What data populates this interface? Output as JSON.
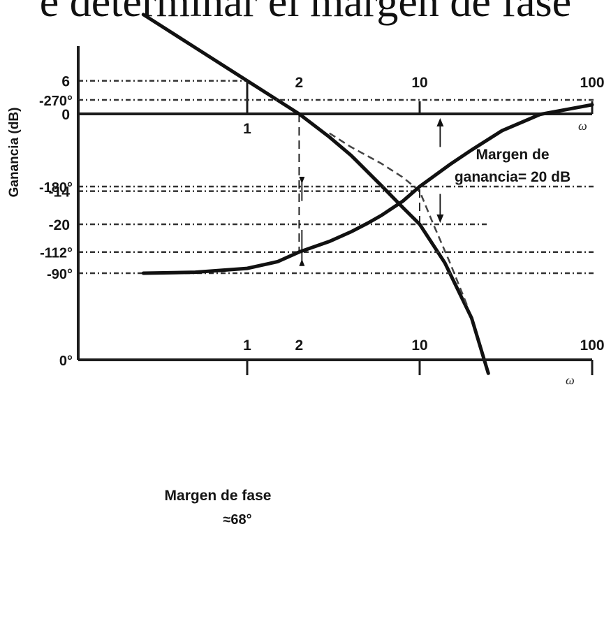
{
  "header": {
    "title_fragment": "e determinar el margen de fase"
  },
  "chart_data": [
    {
      "type": "line",
      "ylabel": "Ganancia (dB)",
      "xlabel": "ω",
      "x_scale": "log",
      "xlim": [
        0.25,
        100
      ],
      "ylim": [
        -60,
        20
      ],
      "x_ticks": [
        1,
        2,
        10,
        100
      ],
      "x_tick_labels": [
        "1",
        "2",
        "10",
        "100"
      ],
      "y_ticks": [
        6,
        0,
        -14,
        -20
      ],
      "y_tick_labels": [
        "6",
        "0",
        "-14",
        "-20"
      ],
      "series": [
        {
          "x": [
            0.25,
            0.5,
            1,
            1.5,
            2,
            3,
            4,
            6,
            8,
            10,
            14,
            20,
            25
          ],
          "y": [
            18,
            12,
            6,
            2.5,
            0,
            -4.2,
            -7.5,
            -13,
            -17,
            -20,
            -27,
            -37,
            -47
          ]
        },
        {
          "x": [
            3,
            4,
            6,
            8,
            10,
            12,
            15,
            19
          ],
          "y": [
            -3.5,
            -6,
            -9,
            -11.5,
            -14,
            -20,
            -27,
            -35
          ]
        }
      ],
      "reference_lines": [
        6,
        -14,
        -20
      ],
      "annotations": [
        {
          "text_line1": "Margen de",
          "text_line2": "ganancia= 20 dB",
          "x": 20,
          "y_from": 0,
          "y_to": -20
        }
      ]
    },
    {
      "type": "line",
      "xlabel": "ω",
      "x_scale": "log",
      "xlim": [
        0.25,
        100
      ],
      "ylim": [
        -270,
        0
      ],
      "x_ticks": [
        1,
        2,
        10,
        100
      ],
      "x_tick_labels": [
        "1",
        "2",
        "10",
        "100"
      ],
      "y_ticks": [
        0,
        -90,
        -112,
        -180,
        -270
      ],
      "y_tick_labels": [
        "0°",
        "-90°",
        "-112°",
        "-180°",
        "-270°"
      ],
      "series": [
        {
          "x": [
            0.25,
            0.5,
            1,
            1.5,
            2,
            3,
            4,
            5,
            6,
            8,
            10,
            15,
            20,
            30,
            50,
            100
          ],
          "y": [
            -90,
            -91,
            -95,
            -102,
            -112,
            -123,
            -133,
            -142,
            -150,
            -165,
            -180,
            -203,
            -218,
            -238,
            -255,
            -265
          ]
        }
      ],
      "reference_lines": [
        -90,
        -112,
        -180
      ],
      "annotations": [
        {
          "text_line1": "Margen de fase",
          "text_line2": "≈68°",
          "x": 2,
          "y_from": -112,
          "y_to": -180
        }
      ]
    }
  ]
}
